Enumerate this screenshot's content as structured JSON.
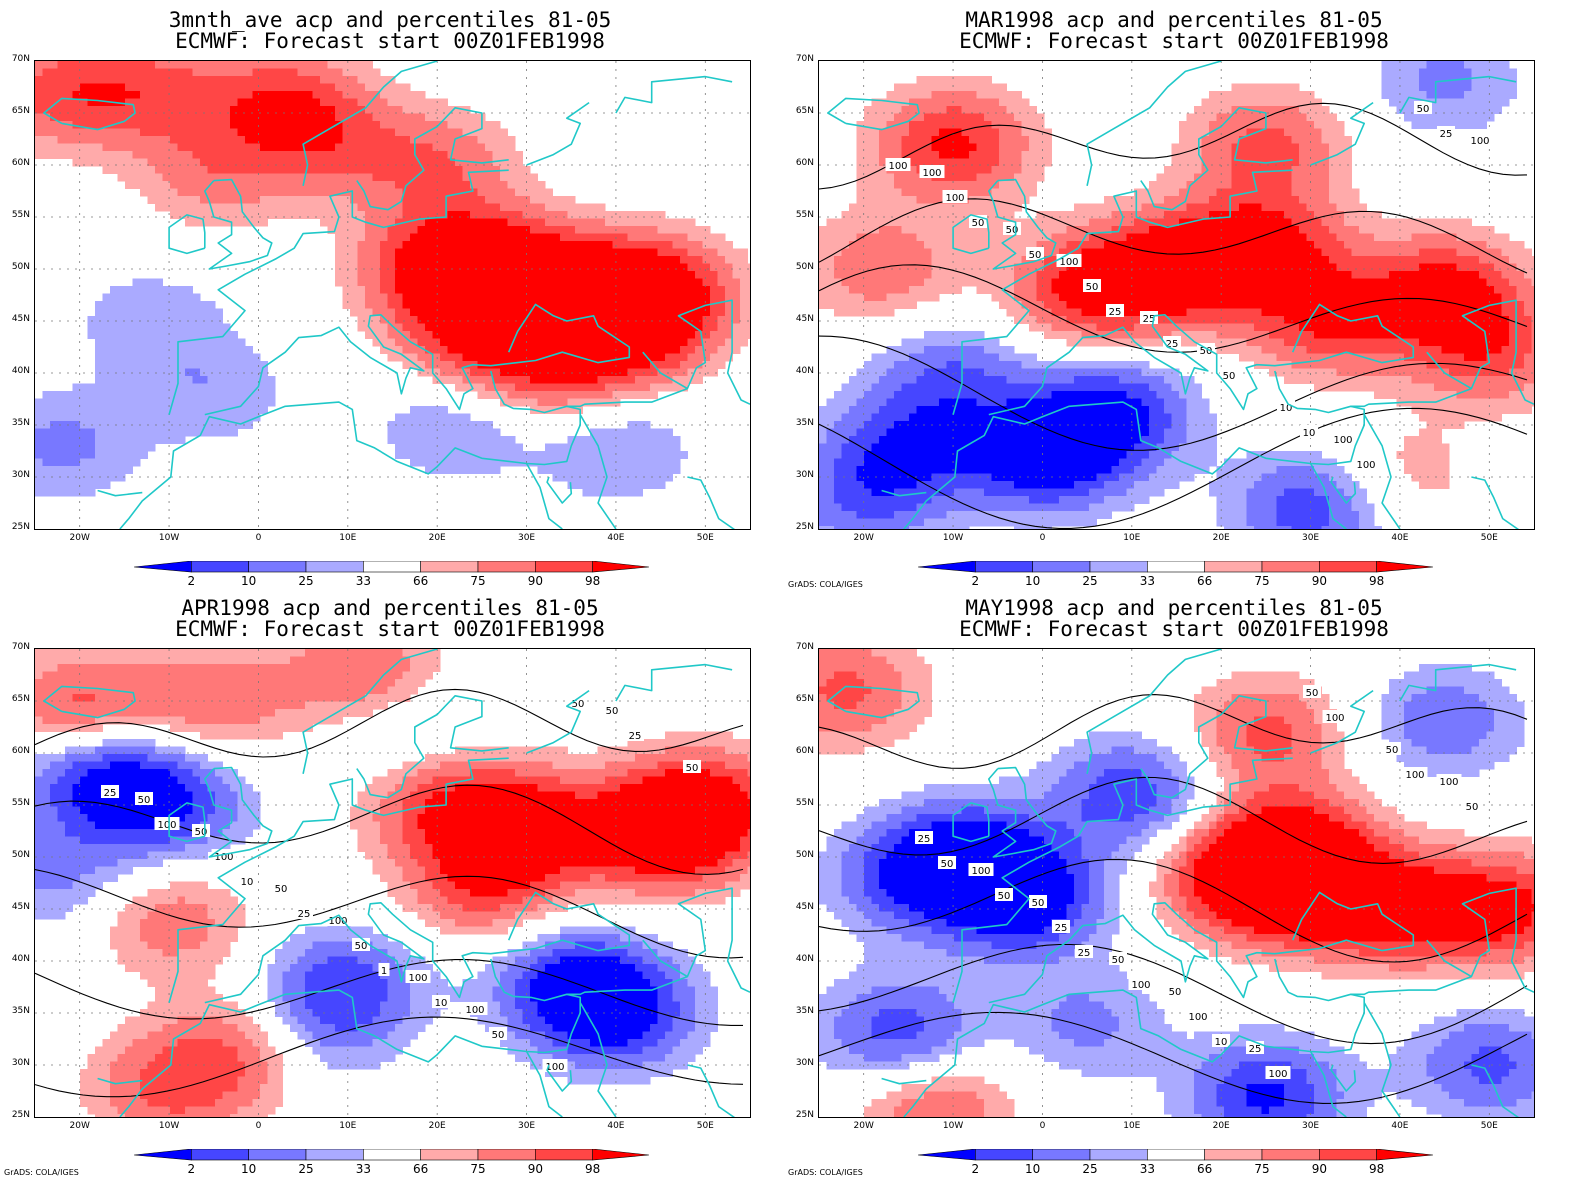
{
  "panels": [
    {
      "title1": "3mnth_ave acp and percentiles 81-05",
      "title2": "ECMWF: Forecast start 00Z01FEB1998",
      "credit": ""
    },
    {
      "title1": "MAR1998 acp and percentiles 81-05",
      "title2": "ECMWF: Forecast start 00Z01FEB1998",
      "credit": "GrADS: COLA/IGES"
    },
    {
      "title1": "APR1998 acp and percentiles 81-05",
      "title2": "ECMWF: Forecast start 00Z01FEB1998",
      "credit": "GrADS: COLA/IGES"
    },
    {
      "title1": "MAY1998 acp and percentiles 81-05",
      "title2": "ECMWF: Forecast start 00Z01FEB1998",
      "credit": "GrADS: COLA/IGES"
    }
  ],
  "lat_labels": [
    "70N",
    "65N",
    "60N",
    "55N",
    "50N",
    "45N",
    "40N",
    "35N",
    "30N",
    "25N"
  ],
  "lon_labels": [
    "20W",
    "10W",
    "0",
    "10E",
    "20E",
    "30E",
    "40E",
    "50E"
  ],
  "colorbar": {
    "labels": [
      "2",
      "10",
      "25",
      "33",
      "66",
      "75",
      "90",
      "98"
    ],
    "colors": [
      "#0000ff",
      "#4646ff",
      "#7878ff",
      "#aaaaff",
      "#ffffff",
      "#ffaaaa",
      "#ff7878",
      "#ff4646",
      "#ff0000"
    ]
  },
  "colors": {
    "coast": "#20c8c8",
    "contour": "#000000"
  },
  "contour_labels": [
    [
      "100",
      "100",
      "50",
      "100",
      "100",
      "50",
      "25",
      "10",
      "50",
      "100",
      "50",
      "50",
      "100",
      "100",
      "50",
      "25",
      "10",
      "25",
      "50",
      "25"
    ],
    [
      "50",
      "100",
      "100",
      "50",
      "50",
      "50",
      "100",
      "100",
      "50",
      "100",
      "50",
      "50",
      "25",
      "100",
      "25",
      "10",
      "50",
      "25",
      "10",
      "1"
    ],
    [
      "50",
      "50",
      "50",
      "100",
      "100",
      "50",
      "25",
      "50",
      "25",
      "25",
      "100",
      "100",
      "50",
      "50",
      "100",
      "100",
      "100",
      "50",
      "25",
      "10"
    ]
  ],
  "chart_data": {
    "type": "heatmap",
    "extent": {
      "lon": [
        -25,
        55
      ],
      "lat": [
        25,
        70
      ]
    },
    "legend_thresholds": [
      2,
      10,
      25,
      33,
      66,
      75,
      90,
      98
    ],
    "anomaly_centres": [
      [
        [
          20,
          50,
          8
        ],
        [
          28,
          50,
          8
        ],
        [
          37,
          47,
          8
        ],
        [
          45,
          48,
          7
        ],
        [
          25,
          43,
          7
        ],
        [
          42,
          44,
          6
        ],
        [
          34,
          40,
          5
        ],
        [
          -22,
          67,
          6
        ],
        [
          -11,
          67,
          5
        ],
        [
          3,
          66,
          6
        ],
        [
          20,
          60,
          5
        ],
        [
          8,
          62,
          4
        ],
        [
          -5,
          59,
          4
        ],
        [
          22,
          35,
          -4
        ],
        [
          40,
          33,
          -4
        ],
        [
          -22,
          33,
          -4
        ],
        [
          -5,
          38,
          -3
        ],
        [
          -12,
          45,
          -3
        ]
      ],
      [
        [
          15,
          50,
          9
        ],
        [
          25,
          52,
          8
        ],
        [
          -10,
          62,
          8
        ],
        [
          5,
          48,
          8
        ],
        [
          32,
          45,
          7
        ],
        [
          45,
          48,
          8
        ],
        [
          50,
          42,
          6
        ],
        [
          -18,
          50,
          5
        ],
        [
          25,
          62,
          6
        ],
        [
          40,
          30,
          3
        ],
        [
          0,
          32,
          -9
        ],
        [
          8,
          36,
          -8
        ],
        [
          -15,
          33,
          -6
        ],
        [
          -20,
          28,
          -5
        ],
        [
          -10,
          40,
          -5
        ],
        [
          30,
          27,
          -7
        ],
        [
          45,
          68,
          -4
        ]
      ],
      [
        [
          30,
          53,
          9
        ],
        [
          45,
          52,
          9
        ],
        [
          50,
          55,
          8
        ],
        [
          20,
          55,
          6
        ],
        [
          12,
          67,
          7
        ],
        [
          -20,
          64,
          7
        ],
        [
          -5,
          65,
          5
        ],
        [
          0,
          32,
          7
        ],
        [
          25,
          47,
          6
        ],
        [
          -10,
          44,
          5
        ],
        [
          -18,
          58,
          -8
        ],
        [
          -10,
          55,
          -7
        ],
        [
          40,
          35,
          -8
        ],
        [
          35,
          38,
          -7
        ],
        [
          10,
          38,
          -6
        ],
        [
          5,
          33,
          -6
        ],
        [
          -22,
          48,
          -4
        ],
        [
          15,
          63,
          -4
        ],
        [
          -10,
          28,
          6
        ]
      ],
      [
        [
          22,
          48,
          9
        ],
        [
          30,
          47,
          9
        ],
        [
          40,
          45,
          8
        ],
        [
          52,
          45,
          8
        ],
        [
          28,
          52,
          6
        ],
        [
          25,
          62,
          6
        ],
        [
          -22,
          66,
          6
        ],
        [
          -12,
          26,
          6
        ],
        [
          -2,
          46,
          -9
        ],
        [
          -8,
          50,
          -8
        ],
        [
          10,
          56,
          -7
        ],
        [
          -15,
          48,
          -6
        ],
        [
          -16,
          33,
          -7
        ],
        [
          25,
          27,
          -8
        ],
        [
          45,
          63,
          -5
        ],
        [
          50,
          30,
          -6
        ],
        [
          5,
          34,
          -4
        ]
      ]
    ]
  }
}
